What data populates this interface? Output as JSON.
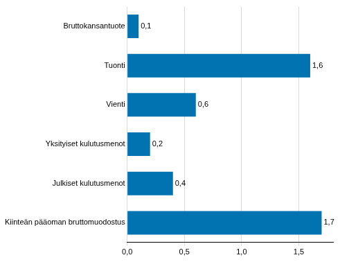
{
  "chart_data": {
    "type": "bar",
    "orientation": "horizontal",
    "categories": [
      "Bruttokansantuote",
      "Tuonti",
      "Vienti",
      "Yksityiset kulutusmenot",
      "Julkiset kulutusmenot",
      "Kiinteän pääoman bruttomuodostus"
    ],
    "values": [
      0.1,
      1.6,
      0.6,
      0.2,
      0.4,
      1.7
    ],
    "value_labels": [
      "0,1",
      "1,6",
      "0,6",
      "0,2",
      "0,4",
      "1,7"
    ],
    "data_labels": true,
    "color": "#0073b0",
    "xlim": [
      0,
      1.8
    ],
    "xticks": [
      {
        "value": 0,
        "label": "0,0"
      },
      {
        "value": 0.5,
        "label": "0,5"
      },
      {
        "value": 1,
        "label": "1,0"
      },
      {
        "value": 1.5,
        "label": "1,5"
      }
    ],
    "grid": true
  }
}
